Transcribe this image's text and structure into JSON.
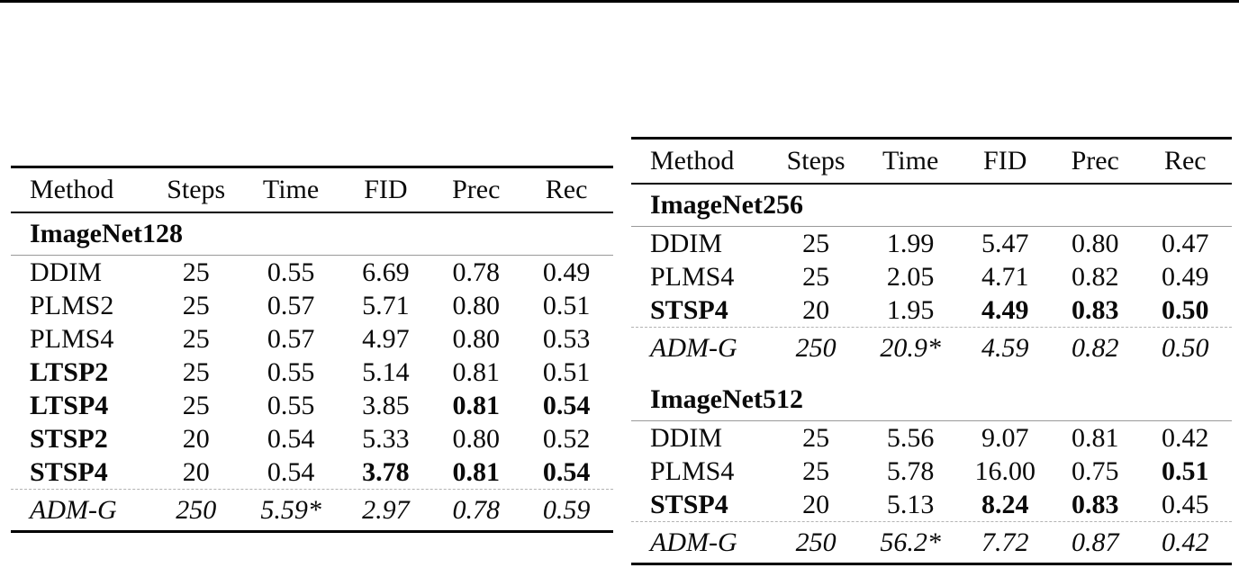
{
  "page": {
    "background": "#ffffff",
    "text_color": "#0a0a0a",
    "rule_color": "#000000",
    "section_rule_color": "#999999",
    "dashed_rule_color": "#b3b3b3"
  },
  "columns": [
    "Method",
    "Steps",
    "Time",
    "FID",
    "Prec",
    "Rec"
  ],
  "tables": [
    {
      "name": "imagenet128-results",
      "sections": [
        {
          "title": "ImageNet128",
          "rows": [
            {
              "cells": [
                "DDIM",
                "25",
                "0.55",
                "6.69",
                "0.78",
                "0.49"
              ],
              "bold": [],
              "italic": false,
              "dashed_above": false
            },
            {
              "cells": [
                "PLMS2",
                "25",
                "0.57",
                "5.71",
                "0.80",
                "0.51"
              ],
              "bold": [],
              "italic": false,
              "dashed_above": false
            },
            {
              "cells": [
                "PLMS4",
                "25",
                "0.57",
                "4.97",
                "0.80",
                "0.53"
              ],
              "bold": [],
              "italic": false,
              "dashed_above": false
            },
            {
              "cells": [
                "LTSP2",
                "25",
                "0.55",
                "5.14",
                "0.81",
                "0.51"
              ],
              "bold": [
                0
              ],
              "italic": false,
              "dashed_above": false
            },
            {
              "cells": [
                "LTSP4",
                "25",
                "0.55",
                "3.85",
                "0.81",
                "0.54"
              ],
              "bold": [
                0,
                4,
                5
              ],
              "italic": false,
              "dashed_above": false
            },
            {
              "cells": [
                "STSP2",
                "20",
                "0.54",
                "5.33",
                "0.80",
                "0.52"
              ],
              "bold": [
                0
              ],
              "italic": false,
              "dashed_above": false
            },
            {
              "cells": [
                "STSP4",
                "20",
                "0.54",
                "3.78",
                "0.81",
                "0.54"
              ],
              "bold": [
                0,
                3,
                4,
                5
              ],
              "italic": false,
              "dashed_above": false
            },
            {
              "cells": [
                "ADM-G",
                "250",
                "5.59*",
                "2.97",
                "0.78",
                "0.59"
              ],
              "bold": [],
              "italic": true,
              "dashed_above": true
            }
          ]
        }
      ]
    },
    {
      "name": "imagenet256-512-results",
      "sections": [
        {
          "title": "ImageNet256",
          "rows": [
            {
              "cells": [
                "DDIM",
                "25",
                "1.99",
                "5.47",
                "0.80",
                "0.47"
              ],
              "bold": [],
              "italic": false,
              "dashed_above": false
            },
            {
              "cells": [
                "PLMS4",
                "25",
                "2.05",
                "4.71",
                "0.82",
                "0.49"
              ],
              "bold": [],
              "italic": false,
              "dashed_above": false
            },
            {
              "cells": [
                "STSP4",
                "20",
                "1.95",
                "4.49",
                "0.83",
                "0.50"
              ],
              "bold": [
                0,
                3,
                4,
                5
              ],
              "italic": false,
              "dashed_above": false
            },
            {
              "cells": [
                "ADM-G",
                "250",
                "20.9*",
                "4.59",
                "0.82",
                "0.50"
              ],
              "bold": [],
              "italic": true,
              "dashed_above": true
            }
          ]
        },
        {
          "title": "ImageNet512",
          "rows": [
            {
              "cells": [
                "DDIM",
                "25",
                "5.56",
                "9.07",
                "0.81",
                "0.42"
              ],
              "bold": [],
              "italic": false,
              "dashed_above": false
            },
            {
              "cells": [
                "PLMS4",
                "25",
                "5.78",
                "16.00",
                "0.75",
                "0.51"
              ],
              "bold": [
                5
              ],
              "italic": false,
              "dashed_above": false
            },
            {
              "cells": [
                "STSP4",
                "20",
                "5.13",
                "8.24",
                "0.83",
                "0.45"
              ],
              "bold": [
                0,
                3,
                4
              ],
              "italic": false,
              "dashed_above": false
            },
            {
              "cells": [
                "ADM-G",
                "250",
                "56.2*",
                "7.72",
                "0.87",
                "0.42"
              ],
              "bold": [],
              "italic": true,
              "dashed_above": true
            }
          ]
        }
      ]
    }
  ]
}
